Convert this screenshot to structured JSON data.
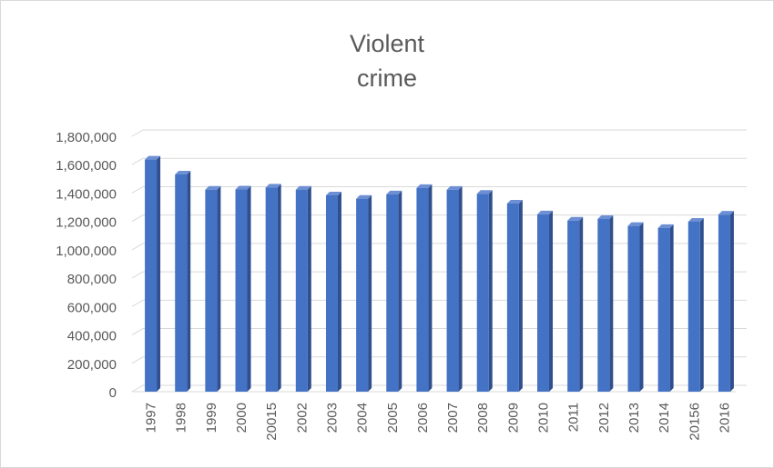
{
  "chart_data": {
    "type": "bar",
    "title_lines": [
      "Violent",
      "crime"
    ],
    "categories": [
      "1997",
      "1998",
      "1999",
      "2000",
      "20015",
      "2002",
      "2003",
      "2004",
      "2005",
      "2006",
      "2007",
      "2008",
      "2009",
      "2010",
      "2011",
      "2012",
      "2013",
      "2014",
      "20156",
      "2016"
    ],
    "values": [
      1636000,
      1531000,
      1424000,
      1425000,
      1439000,
      1424000,
      1384000,
      1360000,
      1391000,
      1436000,
      1423000,
      1395000,
      1326000,
      1250000,
      1206000,
      1217000,
      1168000,
      1154000,
      1198000,
      1248000
    ],
    "ylim": [
      0,
      1800000
    ],
    "y_ticks": [
      "0",
      "200,000",
      "400,000",
      "600,000",
      "800,000",
      "1,000,000",
      "1,200,000",
      "1,400,000",
      "1,600,000",
      "1,800,000"
    ],
    "grid": true,
    "bar_color": "#4472c4",
    "bar_side_color": "#2f4f8f",
    "bar_top_color": "#6d8fd4",
    "grid_color": "#d9d9d9"
  }
}
